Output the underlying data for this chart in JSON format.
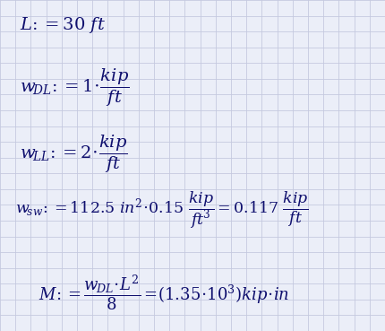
{
  "background_color": "#eaecf4",
  "grid_color": "#c5c9df",
  "text_color_dark": "#1a1a6e",
  "text_color_unit": "#1a1a8e",
  "fig_width": 4.3,
  "fig_height": 3.69,
  "dpi": 100,
  "grid_cols": 25,
  "grid_rows": 21
}
